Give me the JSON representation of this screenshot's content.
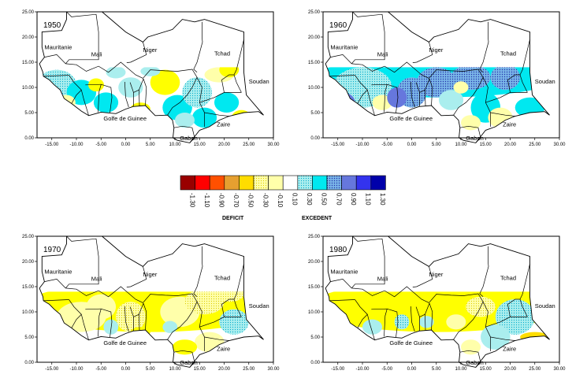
{
  "colors": {
    "land": "#ffffff",
    "border": "#000000",
    "frame": "#000000"
  },
  "axis": {
    "x_ticks": [
      "-15.00",
      "-10.00",
      "-5.00",
      "0.00",
      "5.00",
      "10.00",
      "15.00",
      "20.00",
      "25.00",
      "30.00"
    ],
    "y_ticks": [
      "0.00",
      "5.00",
      "10.00",
      "15.00",
      "20.00",
      "25.00"
    ],
    "x_values": [
      -15,
      -10,
      -5,
      0,
      5,
      10,
      15,
      20,
      25,
      30
    ],
    "y_values": [
      0,
      5,
      10,
      15,
      20,
      25
    ],
    "xlim": [
      -18,
      30
    ],
    "ylim": [
      0,
      25
    ]
  },
  "place_labels": {
    "mauritanie": "Mauritanie",
    "mali": "Mali",
    "niger": "Niger",
    "tchad": "Tchad",
    "soudan": "Soudan",
    "golfe": "Golfe de Guinee",
    "zaire": "Zaire",
    "gabon": "Gabon"
  },
  "maps": [
    {
      "year": "1950",
      "anomaly": "mixed"
    },
    {
      "year": "1960",
      "anomaly": "excedent"
    },
    {
      "year": "1970",
      "anomaly": "deficit"
    },
    {
      "year": "1980",
      "anomaly": "deficit"
    }
  ],
  "legend": {
    "ticks": [
      "-1.30",
      "-1.10",
      "-0.90",
      "-0.70",
      "-0.50",
      "-0.30",
      "-0.10",
      "0.10",
      "0.30",
      "0.50",
      "0.70",
      "0.90",
      "1.10",
      "1.30"
    ],
    "colors": [
      "#990000",
      "#ff0000",
      "#ff5000",
      "#e6a030",
      "#ffdd00",
      "#ffff00",
      "#ffffaa",
      "#ffffff",
      "#aaeeee",
      "#00e8f0",
      "#7ab6e8",
      "#6677dd",
      "#3333ee",
      "#0000aa"
    ],
    "deficit_label": "DEFICIT",
    "excedent_label": "EXCEDENT"
  }
}
